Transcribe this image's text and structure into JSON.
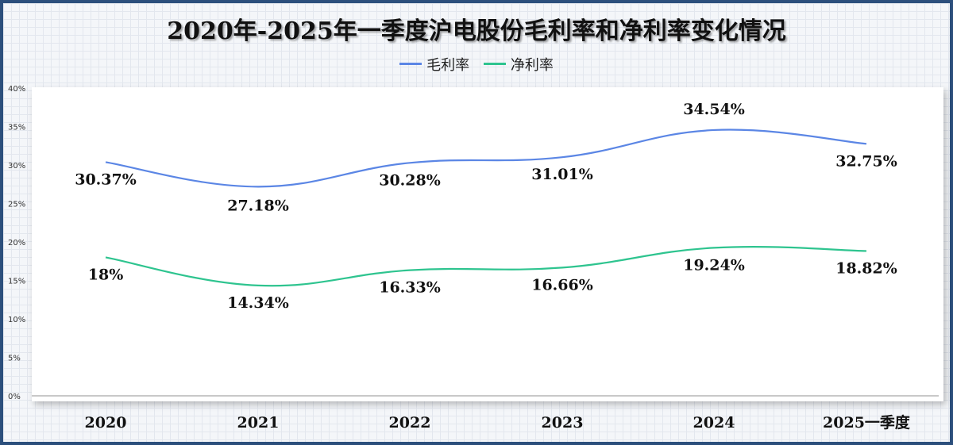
{
  "chart_data": {
    "type": "line",
    "title": "2020年-2025年一季度沪电股份毛利率和净利率变化情况",
    "categories": [
      "2020",
      "2021",
      "2022",
      "2023",
      "2024",
      "2025一季度"
    ],
    "series": [
      {
        "name": "毛利率",
        "color": "#5b86e5",
        "values": [
          30.37,
          27.18,
          30.28,
          31.01,
          34.54,
          32.75
        ],
        "labels": [
          "30.37%",
          "27.18%",
          "30.28%",
          "31.01%",
          "34.54%",
          "32.75%"
        ]
      },
      {
        "name": "净利率",
        "color": "#2ec48f",
        "values": [
          18,
          14.34,
          16.33,
          16.66,
          19.24,
          18.82
        ],
        "labels": [
          "18%",
          "14.34%",
          "16.33%",
          "16.66%",
          "19.24%",
          "18.82%"
        ]
      }
    ],
    "yticks": [
      "0%",
      "5%",
      "10%",
      "15%",
      "20%",
      "25%",
      "30%",
      "35%",
      "40%"
    ],
    "ylim": [
      0,
      40
    ],
    "smooth": true,
    "legend_position": "top-center"
  }
}
